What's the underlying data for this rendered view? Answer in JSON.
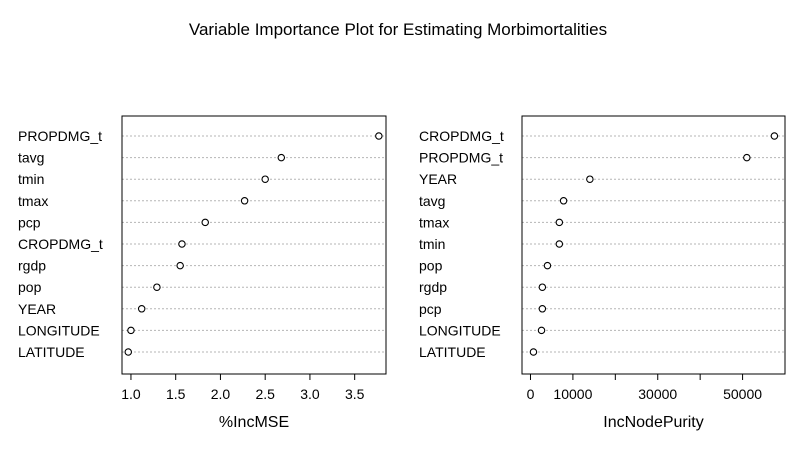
{
  "chart_data": {
    "type": "scatter",
    "title": "Variable Importance Plot for Estimating Morbimortalities",
    "panels": [
      {
        "xlabel": "%IncMSE",
        "xlim": [
          0.9,
          3.85
        ],
        "xticks": [
          1.0,
          1.5,
          2.0,
          2.5,
          3.0,
          3.5
        ],
        "xtick_labels": [
          "1.0",
          "1.5",
          "2.0",
          "2.5",
          "3.0",
          "3.5"
        ],
        "categories": [
          "PROPDMG_t",
          "tavg",
          "tmin",
          "tmax",
          "pcp",
          "CROPDMG_t",
          "rgdp",
          "pop",
          "YEAR",
          "LONGITUDE",
          "LATITUDE"
        ],
        "values": [
          3.77,
          2.68,
          2.5,
          2.27,
          1.83,
          1.57,
          1.55,
          1.29,
          1.12,
          1.0,
          0.97
        ]
      },
      {
        "xlabel": "IncNodePurity",
        "xlim": [
          -2000,
          60000
        ],
        "xticks": [
          0,
          10000,
          20000,
          30000,
          40000,
          50000
        ],
        "xtick_labels": [
          "0",
          "10000",
          "",
          "30000",
          "",
          "50000"
        ],
        "categories": [
          "CROPDMG_t",
          "PROPDMG_t",
          "YEAR",
          "tavg",
          "tmax",
          "tmin",
          "pop",
          "rgdp",
          "pcp",
          "LONGITUDE",
          "LATITUDE"
        ],
        "values": [
          57500,
          51000,
          14000,
          7800,
          6800,
          6800,
          4000,
          2800,
          2800,
          2600,
          700
        ]
      }
    ]
  }
}
